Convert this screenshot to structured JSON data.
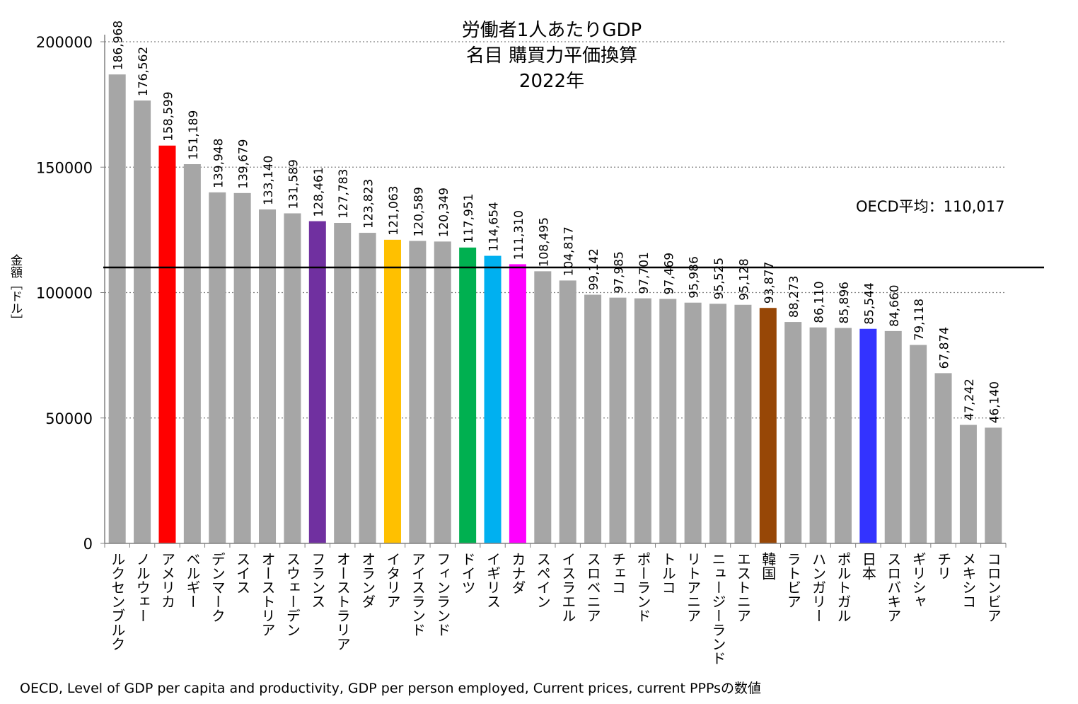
{
  "chart_data": {
    "type": "bar",
    "title_lines": [
      "労働者1人あたりGDP",
      "名目 購買力平価換算",
      "2022年"
    ],
    "ylabel": "金額［ドル］",
    "ylim": [
      0,
      200000
    ],
    "yticks": [
      "0",
      "50000",
      "100000",
      "150000",
      "200000"
    ],
    "ytick_values": [
      0,
      50000,
      100000,
      150000,
      200000
    ],
    "grid": "dotted horizontal",
    "reference_line": {
      "label": "OECD平均：110,017",
      "value": 110017
    },
    "categories": [
      "ルクセンブルク",
      "ノルウェー",
      "アメリカ",
      "ベルギー",
      "デンマーク",
      "スイス",
      "オーストリア",
      "スウェーデン",
      "フランス",
      "オーストラリア",
      "オランダ",
      "イタリア",
      "アイスランド",
      "フィンランド",
      "ドイツ",
      "イギリス",
      "カナダ",
      "スペイン",
      "イスラエル",
      "スロベニア",
      "チェコ",
      "ポーランド",
      "トルコ",
      "リトアニア",
      "ニュージーランド",
      "エストニア",
      "韓国",
      "ラトビア",
      "ハンガリー",
      "ポルトガル",
      "日本",
      "スロバキア",
      "ギリシャ",
      "チリ",
      "メキシコ",
      "コロンビア"
    ],
    "values": [
      186968,
      176562,
      158599,
      151189,
      139948,
      139679,
      133140,
      131589,
      128461,
      127783,
      123823,
      121063,
      120589,
      120349,
      117951,
      114654,
      111310,
      108495,
      104817,
      99142,
      97985,
      97701,
      97469,
      95986,
      95525,
      95128,
      93877,
      88273,
      86110,
      85896,
      85544,
      84660,
      79118,
      67874,
      47242,
      46140
    ],
    "value_labels": [
      "186,968",
      "176,562",
      "158,599",
      "151,189",
      "139,948",
      "139,679",
      "133,140",
      "131,589",
      "128,461",
      "127,783",
      "123,823",
      "121,063",
      "120,589",
      "120,349",
      "117,951",
      "114,654",
      "111,310",
      "108,495",
      "104,817",
      "99,142",
      "97,985",
      "97,701",
      "97,469",
      "95,986",
      "95,525",
      "95,128",
      "93,877",
      "88,273",
      "86,110",
      "85,896",
      "85,544",
      "84,660",
      "79,118",
      "67,874",
      "47,242",
      "46,140"
    ],
    "colors": [
      "#a6a6a6",
      "#a6a6a6",
      "#ff0000",
      "#a6a6a6",
      "#a6a6a6",
      "#a6a6a6",
      "#a6a6a6",
      "#a6a6a6",
      "#7030a0",
      "#a6a6a6",
      "#a6a6a6",
      "#ffc000",
      "#a6a6a6",
      "#a6a6a6",
      "#00b050",
      "#00b0f0",
      "#ff00ff",
      "#a6a6a6",
      "#a6a6a6",
      "#a6a6a6",
      "#a6a6a6",
      "#a6a6a6",
      "#a6a6a6",
      "#a6a6a6",
      "#a6a6a6",
      "#a6a6a6",
      "#974706",
      "#a6a6a6",
      "#a6a6a6",
      "#a6a6a6",
      "#3333ff",
      "#a6a6a6",
      "#a6a6a6",
      "#a6a6a6",
      "#a6a6a6",
      "#a6a6a6"
    ],
    "source_note": "OECD, Level of GDP per capita and productivity, GDP per person employed, Current prices, current PPPsの数値"
  }
}
